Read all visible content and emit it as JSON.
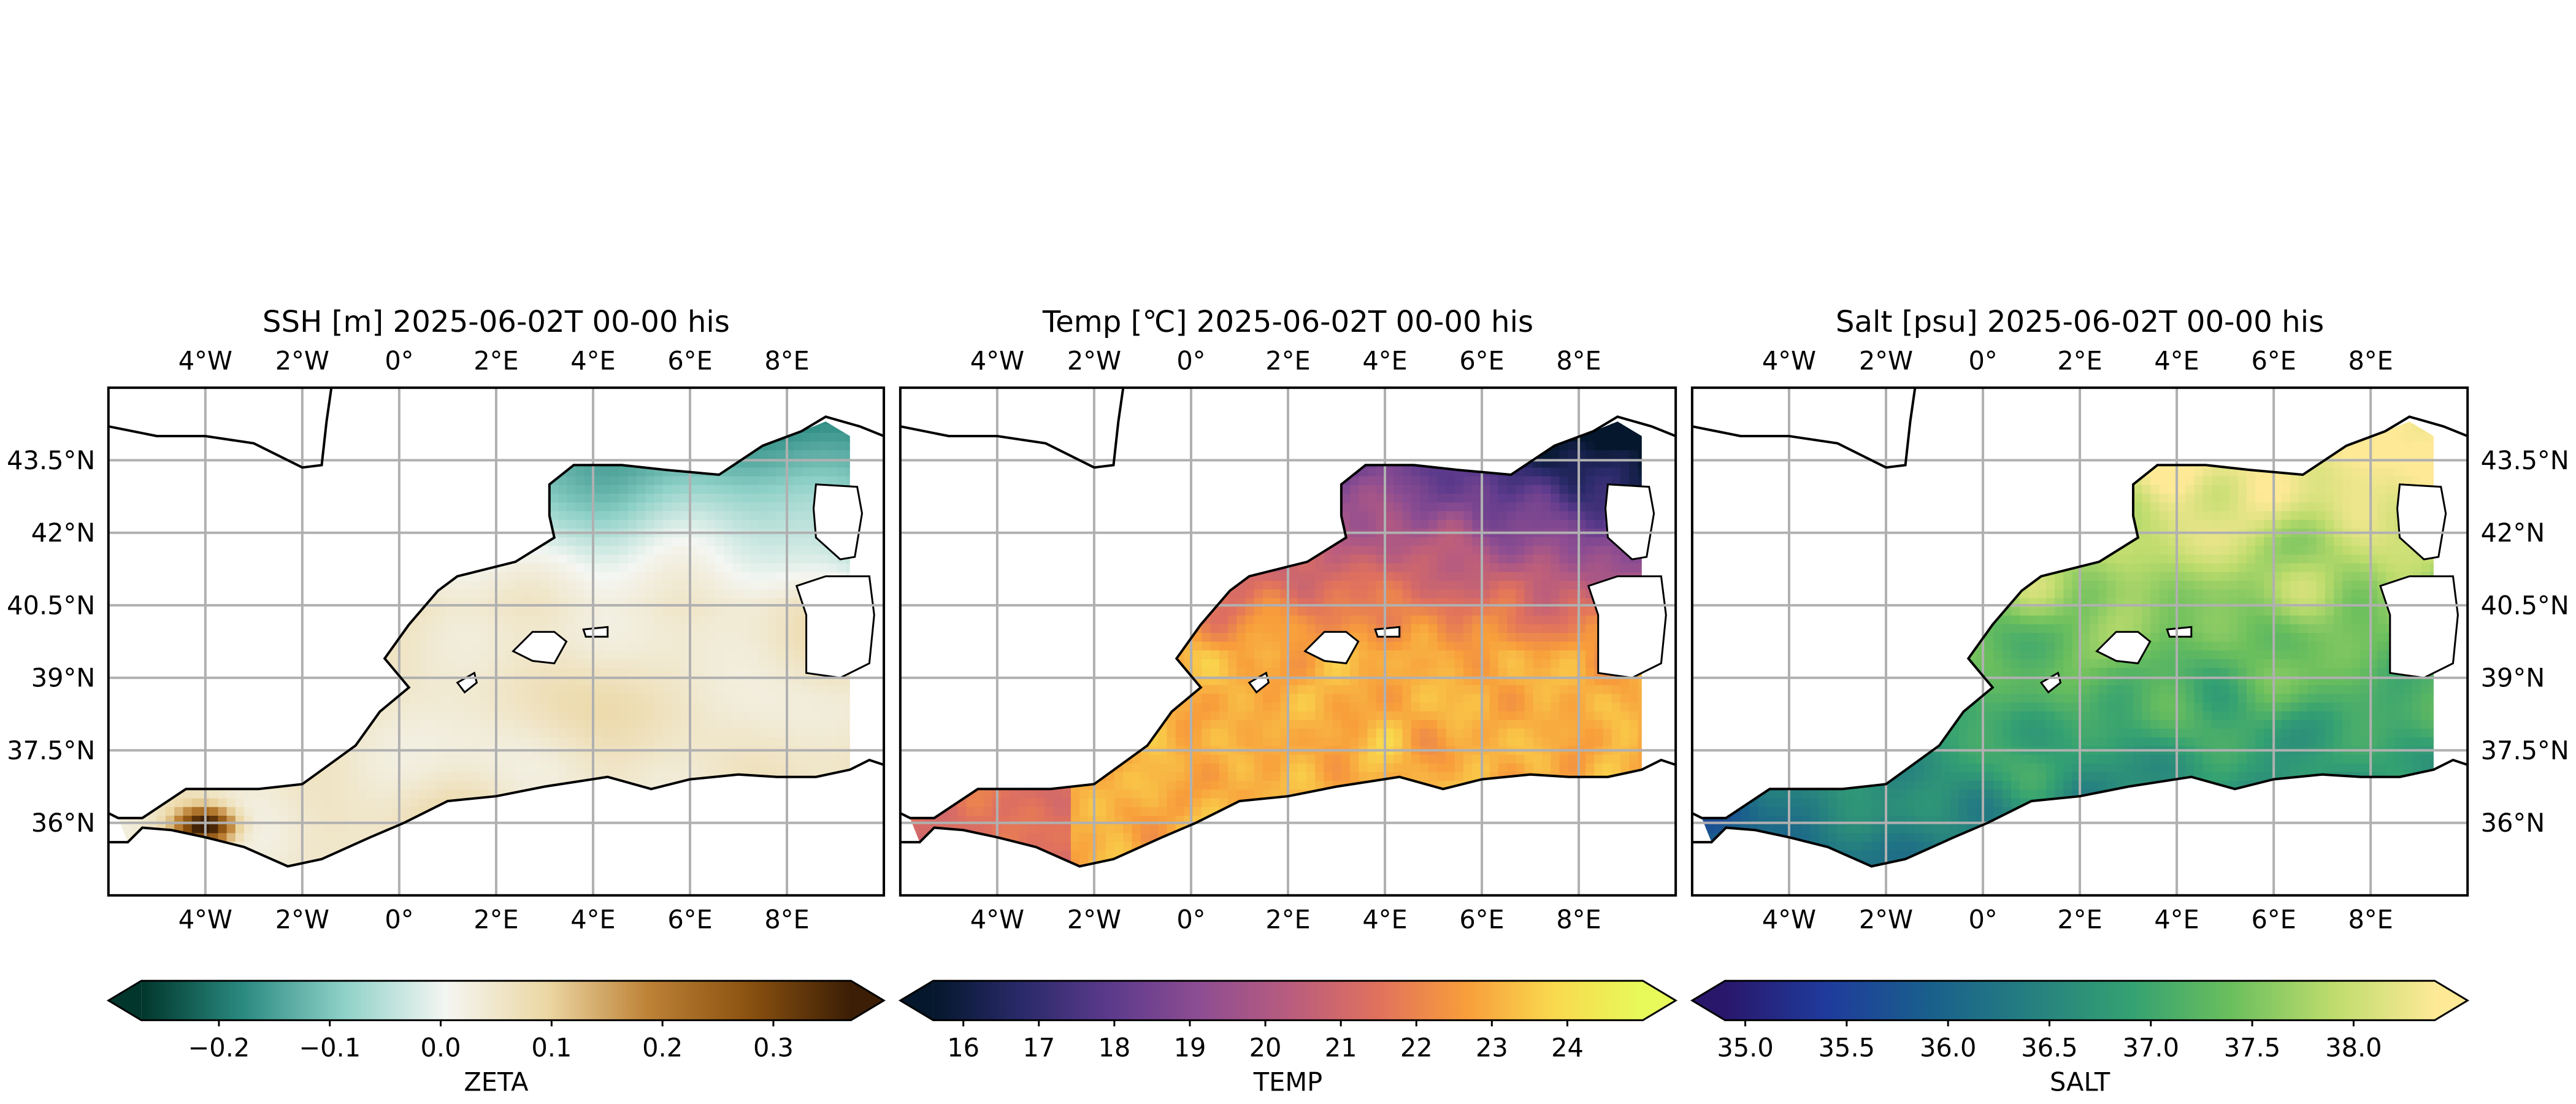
{
  "colors": {
    "zeta_stops": [
      "#01362c",
      "#2a8a80",
      "#8fd1c8",
      "#f4f6f2",
      "#ecd7a4",
      "#bd8236",
      "#8a5110",
      "#3b1e05"
    ],
    "temp_stops": [
      "#04172c",
      "#2a2a6a",
      "#5c3a8c",
      "#8d4d92",
      "#b85c7f",
      "#e0715e",
      "#f89d3b",
      "#f9d94e",
      "#e7fa5a"
    ],
    "salt_stops": [
      "#29176b",
      "#1f3b9c",
      "#195f8c",
      "#257f80",
      "#34a172",
      "#6bbf5d",
      "#bedc6d",
      "#fde996"
    ],
    "coast": "#000000",
    "grid": "#b0b0b0"
  },
  "chart_data": [
    {
      "type": "heatmap",
      "title": "SSH [m] 2025-06-02T 00-00 his",
      "variable": "ZETA",
      "lon_ticks": [
        "4°W",
        "2°W",
        "0°",
        "2°E",
        "4°E",
        "6°E",
        "8°E"
      ],
      "lat_ticks": [
        "43.5°N",
        "42°N",
        "40.5°N",
        "39°N",
        "37.5°N",
        "36°N"
      ],
      "lon_range": [
        -6,
        10
      ],
      "lat_range": [
        34.5,
        45
      ],
      "grid": true,
      "colorbar": {
        "ticks": [
          "−0.2",
          "−0.1",
          "0.0",
          "0.1",
          "0.2",
          "0.3"
        ],
        "tick_values": [
          -0.2,
          -0.1,
          0.0,
          0.1,
          0.2,
          0.3
        ],
        "range": [
          -0.27,
          0.37
        ],
        "extend": "both",
        "label": "ZETA"
      }
    },
    {
      "type": "heatmap",
      "title": "Temp [℃] 2025-06-02T 00-00 his",
      "variable": "TEMP",
      "lon_ticks": [
        "4°W",
        "2°W",
        "0°",
        "2°E",
        "4°E",
        "6°E",
        "8°E"
      ],
      "lat_ticks": [],
      "lon_range": [
        -6,
        10
      ],
      "lat_range": [
        34.5,
        45
      ],
      "grid": true,
      "colorbar": {
        "ticks": [
          "16",
          "17",
          "18",
          "19",
          "20",
          "21",
          "22",
          "23",
          "24"
        ],
        "tick_values": [
          16,
          17,
          18,
          19,
          20,
          21,
          22,
          23,
          24
        ],
        "range": [
          15.6,
          25.0
        ],
        "extend": "both",
        "label": "TEMP"
      }
    },
    {
      "type": "heatmap",
      "title": "Salt [psu] 2025-06-02T 00-00 his",
      "variable": "SALT",
      "lon_ticks": [
        "4°W",
        "2°W",
        "0°",
        "2°E",
        "4°E",
        "6°E",
        "8°E"
      ],
      "lat_ticks": [
        "43.5°N",
        "42°N",
        "40.5°N",
        "39°N",
        "37.5°N",
        "36°N"
      ],
      "lon_range": [
        -6,
        10
      ],
      "lat_range": [
        34.5,
        45
      ],
      "grid": true,
      "colorbar": {
        "ticks": [
          "35.0",
          "35.5",
          "36.0",
          "36.5",
          "37.0",
          "37.5",
          "38.0"
        ],
        "tick_values": [
          35.0,
          35.5,
          36.0,
          36.5,
          37.0,
          37.5,
          38.0
        ],
        "range": [
          34.9,
          38.4
        ],
        "extend": "both",
        "label": "SALT"
      }
    }
  ]
}
